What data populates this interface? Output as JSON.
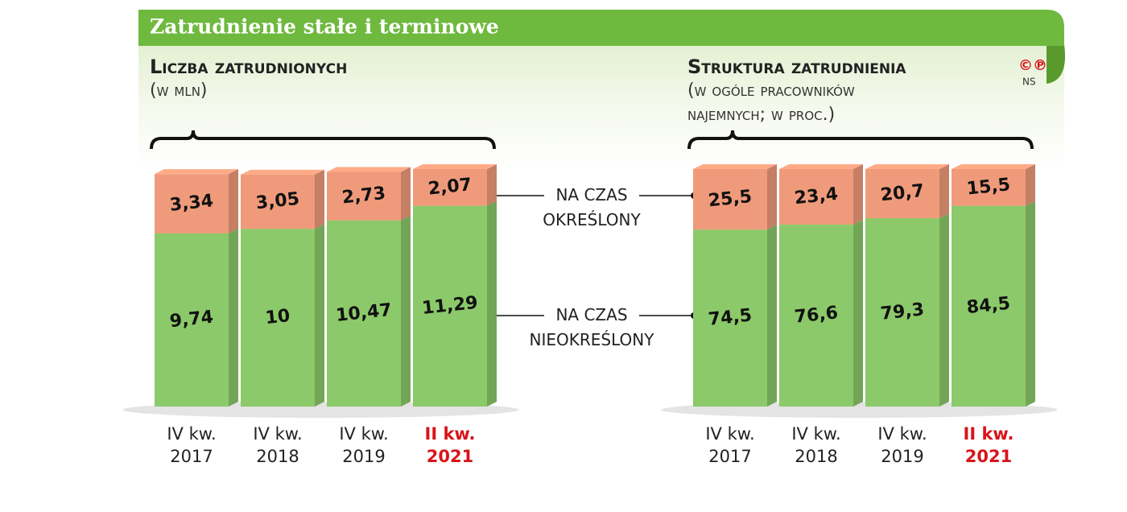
{
  "title": "Zatrudnienie stałe i terminowe",
  "credit": "©℗",
  "credit_author": "NS",
  "chart_data": [
    {
      "type": "stacked-bar",
      "title": "Liczba zatrudnionych",
      "subtitle": "(w mln)",
      "categories": [
        "IV kw. 2017",
        "IV kw. 2018",
        "IV kw. 2019",
        "II kw. 2021"
      ],
      "series": [
        {
          "name": "NA CZAS NIEOKREŚLONY",
          "color": "#8cc96a",
          "values": [
            9.74,
            10,
            10.47,
            11.29
          ],
          "value_labels": [
            "9,74",
            "10",
            "10,47",
            "11,29"
          ]
        },
        {
          "name": "NA CZAS OKREŚLONY",
          "color": "#ef9b7b",
          "values": [
            3.34,
            3.05,
            2.73,
            2.07
          ],
          "value_labels": [
            "3,34",
            "3,05",
            "2,73",
            "2,07"
          ]
        }
      ]
    },
    {
      "type": "stacked-bar",
      "title": "Struktura zatrudnienia",
      "subtitle": "(w ogóle pracowników najemnych; w proc.)",
      "categories": [
        "IV kw. 2017",
        "IV kw. 2018",
        "IV kw. 2019",
        "II kw. 2021"
      ],
      "series": [
        {
          "color": "#8cc96a",
          "values": [
            74.5,
            76.6,
            79.3,
            84.5
          ],
          "value_labels": [
            "74,5",
            "76,6",
            "79,3",
            "84,5"
          ]
        },
        {
          "color": "#ef9b7b",
          "values": [
            25.5,
            23.4,
            20.7,
            15.5
          ],
          "value_labels": [
            "25,5",
            "23,4",
            "20,7",
            "15,5"
          ]
        }
      ]
    }
  ]
}
